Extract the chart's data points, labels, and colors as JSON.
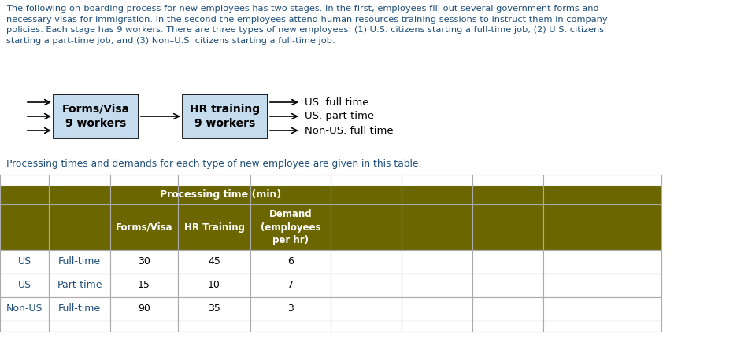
{
  "paragraph_text": "The following on-boarding process for new employees has two stages. In the first, employees fill out several government forms and\nnecessary visas for immigration. In the second the employees attend human resources training sessions to instruct them in company\npolicies. Each stage has 9 workers. There are three types of new employees: (1) U.S. citizens starting a full-time job, (2) U.S. citizens\nstarting a part-time job, and (3) Non–U.S. citizens starting a full-time job.",
  "paragraph_color": "#1F4E79",
  "box_facecolor": "#C5DCEE",
  "box_edgecolor": "#000000",
  "output_labels": [
    "US. full time",
    "US. part time",
    "Non-US. full time"
  ],
  "table_text": "Processing times and demands for each type of new employee are given in this table:",
  "table_text_color": "#1F4E79",
  "header_bg": "#6B6600",
  "header_fg": "#FFFFFF",
  "rows": [
    [
      "US",
      "Full-time",
      "30",
      "45",
      "6"
    ],
    [
      "US",
      "Part-time",
      "15",
      "10",
      "7"
    ],
    [
      "Non-US",
      "Full-time",
      "90",
      "35",
      "3"
    ]
  ],
  "data_text_color": "#1F4E79",
  "grid_color": "#AAAAAA"
}
